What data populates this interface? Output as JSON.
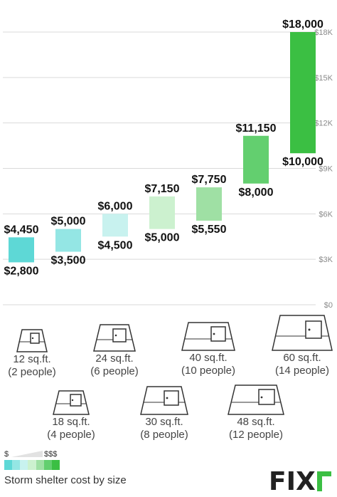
{
  "chart_data": {
    "type": "bar",
    "subtype": "floating-range",
    "title": "",
    "ylim": [
      0,
      18000
    ],
    "yticks": [
      0,
      3000,
      6000,
      9000,
      12000,
      15000,
      18000
    ],
    "ytick_labels": [
      "$0",
      "$3K",
      "$6K",
      "$9K",
      "$12K",
      "$15K",
      "$18K"
    ],
    "grid": true,
    "series": [
      {
        "low": 2800,
        "high": 4450,
        "low_label": "$2,800",
        "high_label": "$4,450",
        "color": "#5ed8d6"
      },
      {
        "low": 3500,
        "high": 5000,
        "low_label": "$3,500",
        "high_label": "$5,000",
        "color": "#94e6e4"
      },
      {
        "low": 4500,
        "high": 6000,
        "low_label": "$4,500",
        "high_label": "$6,000",
        "color": "#c8f2ef"
      },
      {
        "low": 5000,
        "high": 7150,
        "low_label": "$5,000",
        "high_label": "$7,150",
        "color": "#ccf1cf"
      },
      {
        "low": 5550,
        "high": 7750,
        "low_label": "$5,550",
        "high_label": "$7,750",
        "color": "#9fe0a4"
      },
      {
        "low": 8000,
        "high": 11150,
        "low_label": "$8,000",
        "high_label": "$11,150",
        "color": "#63cf6f"
      },
      {
        "low": 10000,
        "high": 18000,
        "low_label": "$10,000",
        "high_label": "$18,000",
        "color": "#3bbf43"
      }
    ]
  },
  "shelters": [
    {
      "size": "12 sq.ft.",
      "people": "(2 people)"
    },
    {
      "size": "18 sq.ft.",
      "people": "(4 people)"
    },
    {
      "size": "24 sq.ft.",
      "people": "(6 people)"
    },
    {
      "size": "30 sq.ft.",
      "people": "(8 people)"
    },
    {
      "size": "40 sq.ft.",
      "people": "(10 people)"
    },
    {
      "size": "48 sq.ft.",
      "people": "(12 people)"
    },
    {
      "size": "60 sq.ft.",
      "people": "(14 people)"
    }
  ],
  "legend": {
    "low_label": "$",
    "high_label": "$$$",
    "colors": [
      "#5ed8d6",
      "#94e6e4",
      "#c8f2ef",
      "#ccf1cf",
      "#9fe0a4",
      "#63cf6f",
      "#3bbf43"
    ]
  },
  "caption": "Storm shelter cost by size",
  "logo_text": "FIXr"
}
